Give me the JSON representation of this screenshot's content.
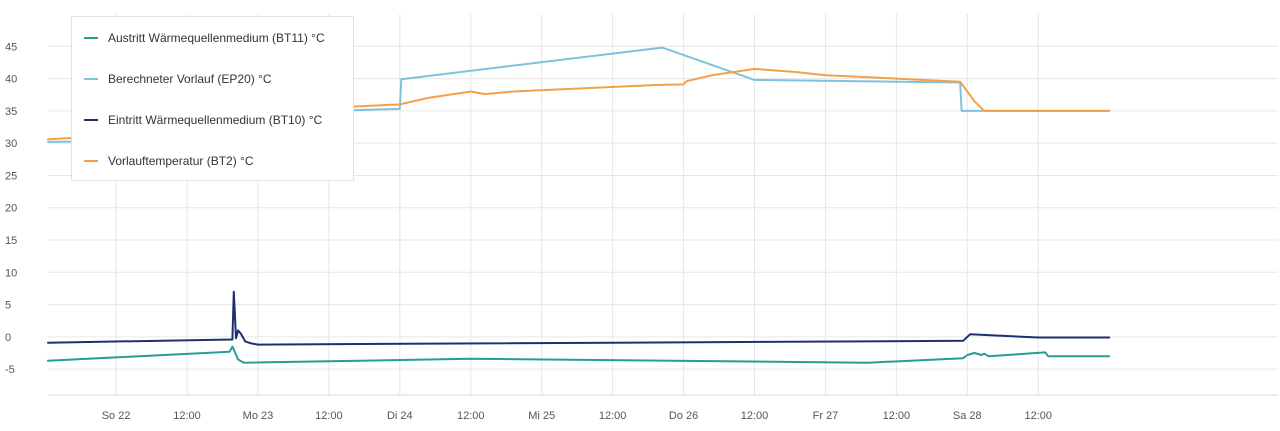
{
  "chart_data": {
    "type": "line",
    "title": "",
    "xlabel": "",
    "ylabel": "",
    "ylim": [
      -9,
      50
    ],
    "y_ticks": [
      -5,
      0,
      5,
      10,
      15,
      20,
      25,
      30,
      35,
      40,
      45
    ],
    "xlim": [
      -0.48,
      8.19
    ],
    "x_ticks": [
      {
        "label": "So 22",
        "x": 0
      },
      {
        "label": "12:00",
        "x": 0.5
      },
      {
        "label": "Mo 23",
        "x": 1
      },
      {
        "label": "12:00",
        "x": 1.5
      },
      {
        "label": "Di 24",
        "x": 2
      },
      {
        "label": "12:00",
        "x": 2.5
      },
      {
        "label": "Mi 25",
        "x": 3
      },
      {
        "label": "12:00",
        "x": 3.5
      },
      {
        "label": "Do 26",
        "x": 4
      },
      {
        "label": "12:00",
        "x": 4.5
      },
      {
        "label": "Fr 27",
        "x": 5
      },
      {
        "label": "12:00",
        "x": 5.5
      },
      {
        "label": "Sa 28",
        "x": 6
      },
      {
        "label": "12:00",
        "x": 6.5
      }
    ],
    "grid": true,
    "legend_position": "top-left",
    "series": [
      {
        "name": "Austritt Wärmequellenmedium (BT11) °C",
        "color": "#2a9d8f",
        "points": [
          [
            -0.48,
            -3.7
          ],
          [
            0.8,
            -2.3
          ],
          [
            0.82,
            -1.5
          ],
          [
            0.84,
            -2.5
          ],
          [
            0.86,
            -3.5
          ],
          [
            0.9,
            -4.0
          ],
          [
            2.5,
            -3.4
          ],
          [
            5.3,
            -4.0
          ],
          [
            5.97,
            -3.3
          ],
          [
            6.0,
            -2.8
          ],
          [
            6.05,
            -2.5
          ],
          [
            6.1,
            -2.8
          ],
          [
            6.12,
            -2.6
          ],
          [
            6.15,
            -3.0
          ],
          [
            6.55,
            -2.4
          ],
          [
            6.57,
            -3.0
          ],
          [
            7.0,
            -3.0
          ]
        ]
      },
      {
        "name": "Berechneter Vorlauf (EP20) °C",
        "color": "#7ec3dd",
        "points": [
          [
            -0.48,
            30.2
          ],
          [
            0.82,
            30.5
          ],
          [
            1.5,
            35.0
          ],
          [
            2.0,
            35.3
          ],
          [
            2.01,
            39.9
          ],
          [
            3.85,
            44.8
          ],
          [
            4.5,
            39.8
          ],
          [
            5.95,
            39.4
          ],
          [
            5.96,
            35.0
          ],
          [
            7.0,
            35.0
          ]
        ]
      },
      {
        "name": "Eintritt Wärmequellenmedium (BT10) °C",
        "color": "#1f2f6e",
        "points": [
          [
            -0.48,
            -0.9
          ],
          [
            0.82,
            -0.4
          ],
          [
            0.83,
            7.0
          ],
          [
            0.845,
            -0.2
          ],
          [
            0.86,
            1.0
          ],
          [
            0.88,
            0.5
          ],
          [
            0.91,
            -0.7
          ],
          [
            0.95,
            -1.0
          ],
          [
            1.0,
            -1.2
          ],
          [
            5.97,
            -0.6
          ],
          [
            6.02,
            0.4
          ],
          [
            6.5,
            -0.1
          ],
          [
            7.0,
            -0.1
          ]
        ]
      },
      {
        "name": "Vorlauftemperatur (BT2) °C",
        "color": "#f4a04a",
        "points": [
          [
            -0.48,
            30.6
          ],
          [
            0.3,
            31.5
          ],
          [
            0.8,
            32.0
          ],
          [
            0.82,
            28.3
          ],
          [
            0.86,
            29.7
          ],
          [
            1.0,
            33.0
          ],
          [
            1.5,
            35.5
          ],
          [
            2.0,
            36.0
          ],
          [
            2.2,
            37.0
          ],
          [
            2.5,
            38.0
          ],
          [
            2.6,
            37.6
          ],
          [
            2.8,
            38.0
          ],
          [
            3.3,
            38.5
          ],
          [
            3.8,
            39.0
          ],
          [
            4.0,
            39.1
          ],
          [
            4.02,
            39.6
          ],
          [
            4.2,
            40.5
          ],
          [
            4.5,
            41.5
          ],
          [
            4.8,
            41.0
          ],
          [
            5.0,
            40.5
          ],
          [
            5.5,
            40.0
          ],
          [
            5.95,
            39.5
          ],
          [
            6.0,
            38.0
          ],
          [
            6.05,
            36.5
          ],
          [
            6.12,
            35.0
          ],
          [
            7.0,
            35.0
          ]
        ]
      }
    ]
  }
}
